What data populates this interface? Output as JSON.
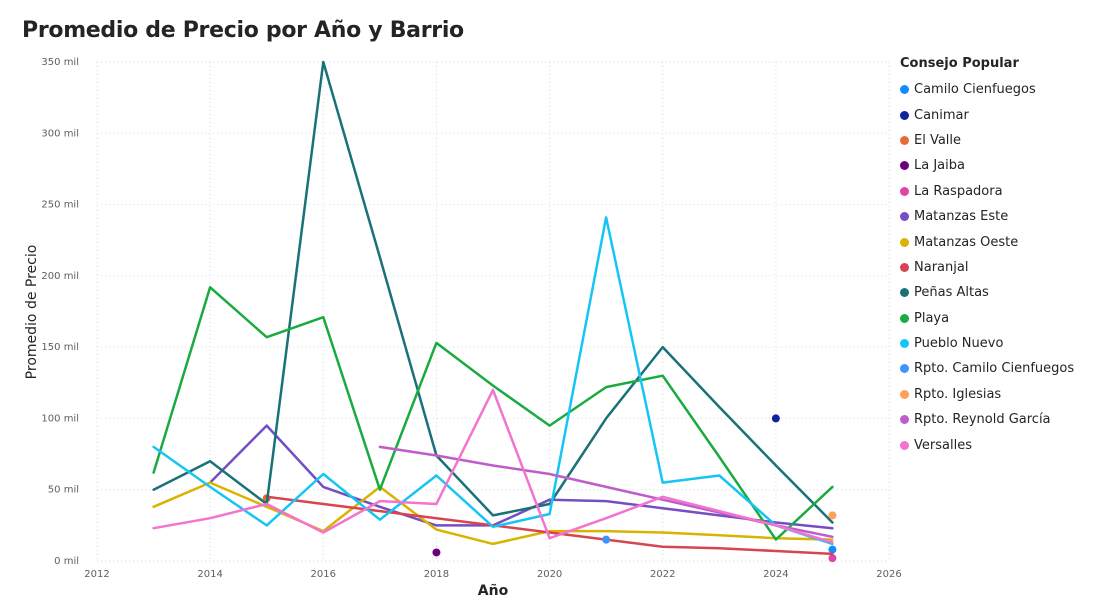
{
  "title": "Promedio de Precio por Año y Barrio",
  "legend": {
    "title": "Consejo Popular"
  },
  "chart_data": {
    "type": "line",
    "xlabel": "Año",
    "ylabel": "Promedio de Precio",
    "xlim": [
      2012,
      2026
    ],
    "ylim": [
      0,
      350000
    ],
    "xticks": [
      2012,
      2014,
      2016,
      2018,
      2020,
      2022,
      2024,
      2026
    ],
    "xtick_labels": [
      "2012",
      "2014",
      "2016",
      "2018",
      "2020",
      "2022",
      "2024",
      "2026"
    ],
    "yticks": [
      0,
      50000,
      100000,
      150000,
      200000,
      250000,
      300000,
      350000
    ],
    "ytick_labels": [
      "0 mil",
      "50 mil",
      "100 mil",
      "150 mil",
      "200 mil",
      "250 mil",
      "300 mil",
      "350 mil"
    ],
    "grid": true,
    "legend_position": "right",
    "series": [
      {
        "name": "Camilo Cienfuegos",
        "color": "#118DFF",
        "points": [
          [
            2025,
            8000
          ]
        ]
      },
      {
        "name": "Canimar",
        "color": "#12239E",
        "points": [
          [
            2024,
            100000
          ]
        ]
      },
      {
        "name": "El Valle",
        "color": "#E66C37",
        "points": [
          [
            2015,
            44000
          ]
        ]
      },
      {
        "name": "La Jaiba",
        "color": "#6B007B",
        "points": [
          [
            2018,
            6000
          ]
        ]
      },
      {
        "name": "La Raspadora",
        "color": "#E044A7",
        "points": [
          [
            2025,
            2000
          ]
        ]
      },
      {
        "name": "Matanzas Este",
        "color": "#744EC2",
        "points": [
          [
            2014,
            55000
          ],
          [
            2015,
            95000
          ],
          [
            2016,
            52000
          ],
          [
            2017,
            38000
          ],
          [
            2018,
            25000
          ],
          [
            2019,
            25000
          ],
          [
            2020,
            43000
          ],
          [
            2021,
            42000
          ],
          [
            2022,
            37000
          ],
          [
            2023,
            32000
          ],
          [
            2024,
            27000
          ],
          [
            2025,
            23000
          ]
        ]
      },
      {
        "name": "Matanzas Oeste",
        "color": "#D9B300",
        "points": [
          [
            2013,
            38000
          ],
          [
            2014,
            55000
          ],
          [
            2015,
            38000
          ],
          [
            2016,
            21000
          ],
          [
            2017,
            52000
          ],
          [
            2018,
            22000
          ],
          [
            2019,
            12000
          ],
          [
            2020,
            21000
          ],
          [
            2021,
            21000
          ],
          [
            2022,
            20000
          ],
          [
            2023,
            18000
          ],
          [
            2024,
            16000
          ],
          [
            2025,
            15000
          ]
        ]
      },
      {
        "name": "Naranjal",
        "color": "#D64550",
        "points": [
          [
            2015,
            45000
          ],
          [
            2016,
            40000
          ],
          [
            2017,
            35000
          ],
          [
            2018,
            30000
          ],
          [
            2019,
            25000
          ],
          [
            2020,
            20000
          ],
          [
            2021,
            15000
          ],
          [
            2022,
            10000
          ],
          [
            2023,
            9000
          ],
          [
            2024,
            7000
          ],
          [
            2025,
            5000
          ]
        ]
      },
      {
        "name": "Peñas Altas",
        "color": "#197278",
        "points": [
          [
            2013,
            50000
          ],
          [
            2014,
            70000
          ],
          [
            2015,
            40000
          ],
          [
            2016,
            350000
          ],
          [
            2017,
            213000
          ],
          [
            2018,
            74000
          ],
          [
            2019,
            32000
          ],
          [
            2020,
            40000
          ],
          [
            2021,
            100000
          ],
          [
            2022,
            150000
          ],
          [
            2023,
            108000
          ],
          [
            2024,
            67000
          ],
          [
            2025,
            27000
          ]
        ]
      },
      {
        "name": "Playa",
        "color": "#1AAB40",
        "points": [
          [
            2013,
            62000
          ],
          [
            2014,
            192000
          ],
          [
            2015,
            157000
          ],
          [
            2016,
            171000
          ],
          [
            2017,
            50000
          ],
          [
            2018,
            153000
          ],
          [
            2019,
            123000
          ],
          [
            2020,
            95000
          ],
          [
            2021,
            122000
          ],
          [
            2022,
            130000
          ],
          [
            2023,
            73000
          ],
          [
            2024,
            15000
          ],
          [
            2025,
            52000
          ]
        ]
      },
      {
        "name": "Pueblo Nuevo",
        "color": "#15C6F4",
        "points": [
          [
            2013,
            80000
          ],
          [
            2014,
            52000
          ],
          [
            2015,
            25000
          ],
          [
            2016,
            61000
          ],
          [
            2017,
            29000
          ],
          [
            2018,
            60000
          ],
          [
            2019,
            24000
          ],
          [
            2020,
            33000
          ],
          [
            2021,
            241000
          ],
          [
            2022,
            55000
          ],
          [
            2023,
            60000
          ],
          [
            2024,
            25000
          ],
          [
            2025,
            12000
          ]
        ]
      },
      {
        "name": "Rpto. Camilo Cienfuegos",
        "color": "#4092FF",
        "points": [
          [
            2021,
            15000
          ]
        ]
      },
      {
        "name": "Rpto. Iglesias",
        "color": "#FFA058",
        "points": [
          [
            2025,
            32000
          ]
        ]
      },
      {
        "name": "Rpto. Reynold García",
        "color": "#BE5DC9",
        "points": [
          [
            2017,
            80000
          ],
          [
            2018,
            74000
          ],
          [
            2019,
            67000
          ],
          [
            2020,
            61000
          ],
          [
            2021,
            52000
          ],
          [
            2022,
            43000
          ],
          [
            2023,
            34000
          ],
          [
            2024,
            25000
          ],
          [
            2025,
            17000
          ]
        ]
      },
      {
        "name": "Versalles",
        "color": "#F472D0",
        "points": [
          [
            2013,
            23000
          ],
          [
            2014,
            30000
          ],
          [
            2015,
            40000
          ],
          [
            2016,
            20000
          ],
          [
            2017,
            42000
          ],
          [
            2018,
            40000
          ],
          [
            2019,
            120000
          ],
          [
            2020,
            16000
          ],
          [
            2021,
            30000
          ],
          [
            2022,
            45000
          ],
          [
            2023,
            35000
          ],
          [
            2024,
            25000
          ],
          [
            2025,
            13000
          ]
        ]
      }
    ]
  }
}
